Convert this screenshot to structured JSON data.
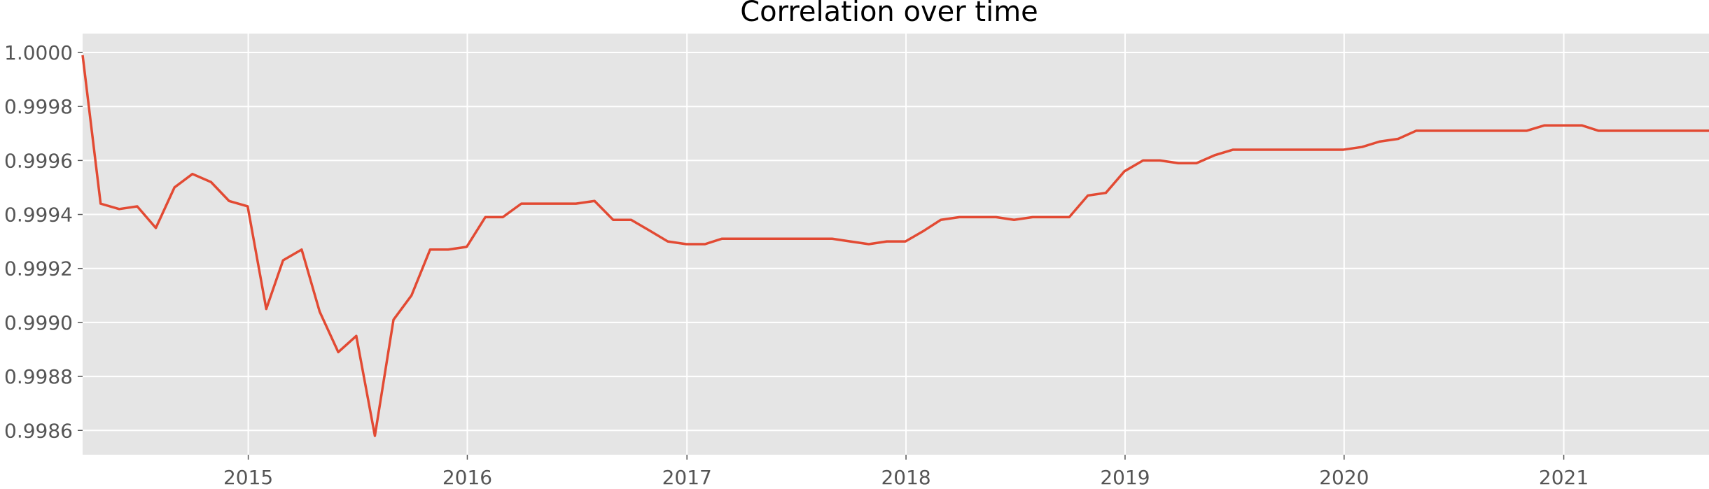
{
  "chart_data": {
    "type": "line",
    "title": "Correlation over time",
    "xlabel": "",
    "ylabel": "",
    "x_ticks": [
      "2015",
      "2016",
      "2017",
      "2018",
      "2019",
      "2020",
      "2021"
    ],
    "y_ticks": [
      "0.9986",
      "0.9988",
      "0.9990",
      "0.9992",
      "0.9994",
      "0.9996",
      "0.9998",
      "1.0000"
    ],
    "xlim": [
      "2014-03-31",
      "2021-08-31"
    ],
    "ylim": [
      0.99851,
      1.00007
    ],
    "grid": true,
    "series": [
      {
        "color": "#E24A33",
        "x": [
          "2014-03-31",
          "2014-04-30",
          "2014-05-31",
          "2014-06-30",
          "2014-07-31",
          "2014-08-31",
          "2014-09-30",
          "2014-10-31",
          "2014-11-30",
          "2014-12-31",
          "2015-01-31",
          "2015-02-28",
          "2015-03-31",
          "2015-04-30",
          "2015-05-31",
          "2015-06-30",
          "2015-07-31",
          "2015-08-31",
          "2015-09-30",
          "2015-10-31",
          "2015-11-30",
          "2015-12-31",
          "2016-01-31",
          "2016-02-29",
          "2016-03-31",
          "2016-04-30",
          "2016-05-31",
          "2016-06-30",
          "2016-07-31",
          "2016-08-31",
          "2016-09-30",
          "2016-10-31",
          "2016-11-30",
          "2016-12-31",
          "2017-01-31",
          "2017-02-28",
          "2017-03-31",
          "2017-04-30",
          "2017-05-31",
          "2017-06-30",
          "2017-07-31",
          "2017-08-31",
          "2017-09-30",
          "2017-10-31",
          "2017-11-30",
          "2017-12-31",
          "2018-01-31",
          "2018-02-28",
          "2018-03-31",
          "2018-04-30",
          "2018-05-31",
          "2018-06-30",
          "2018-07-31",
          "2018-08-31",
          "2018-09-30",
          "2018-10-31",
          "2018-11-30",
          "2018-12-31",
          "2019-01-31",
          "2019-02-28",
          "2019-03-31",
          "2019-04-30",
          "2019-05-31",
          "2019-06-30",
          "2019-07-31",
          "2019-08-31",
          "2019-09-30",
          "2019-10-31",
          "2019-11-30",
          "2019-12-31",
          "2020-01-31",
          "2020-02-29",
          "2020-03-31",
          "2020-04-30",
          "2020-05-31",
          "2020-06-30",
          "2020-07-31",
          "2020-08-31",
          "2020-09-30",
          "2020-10-31",
          "2020-11-30",
          "2020-12-31",
          "2021-01-31",
          "2021-02-28",
          "2021-03-31",
          "2021-04-30",
          "2021-05-31",
          "2021-06-30",
          "2021-07-31",
          "2021-08-31"
        ],
        "values": [
          0.99999,
          0.99944,
          0.99942,
          0.99943,
          0.99935,
          0.9995,
          0.99955,
          0.99952,
          0.99945,
          0.99943,
          0.99905,
          0.99923,
          0.99927,
          0.99904,
          0.99889,
          0.99895,
          0.99858,
          0.99901,
          0.9991,
          0.99927,
          0.99927,
          0.99928,
          0.99939,
          0.99939,
          0.99944,
          0.99944,
          0.99944,
          0.99944,
          0.99945,
          0.99938,
          0.99938,
          0.99934,
          0.9993,
          0.99929,
          0.99929,
          0.99931,
          0.99931,
          0.99931,
          0.99931,
          0.99931,
          0.99931,
          0.99931,
          0.9993,
          0.99929,
          0.9993,
          0.9993,
          0.99934,
          0.99938,
          0.99939,
          0.99939,
          0.99939,
          0.99938,
          0.99939,
          0.99939,
          0.99939,
          0.99947,
          0.99948,
          0.99956,
          0.9996,
          0.9996,
          0.99959,
          0.99959,
          0.99962,
          0.99964,
          0.99964,
          0.99964,
          0.99964,
          0.99964,
          0.99964,
          0.99964,
          0.99965,
          0.99967,
          0.99968,
          0.99971,
          0.99971,
          0.99971,
          0.99971,
          0.99971,
          0.99971,
          0.99971,
          0.99973,
          0.99973,
          0.99973,
          0.99971,
          0.99971,
          0.99971,
          0.99971,
          0.99971,
          0.99971,
          0.99971
        ]
      }
    ]
  }
}
